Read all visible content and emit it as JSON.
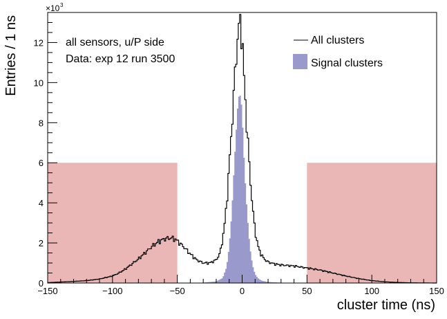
{
  "chart_data": {
    "type": "histogram",
    "xlabel": "cluster time (ns)",
    "ylabel": "Entries / 1 ns",
    "y_multiplier_label": "×10",
    "y_multiplier_exponent": "3",
    "xlim": [
      -150,
      150
    ],
    "ylim": [
      0,
      13.5
    ],
    "y_unit_note": "values in thousands of entries",
    "x_ticks": [
      -150,
      -100,
      -50,
      0,
      50,
      100,
      150
    ],
    "x_tick_labels": [
      "−150",
      "−100",
      "−50",
      "0",
      "50",
      "100",
      "150"
    ],
    "y_ticks": [
      0,
      2,
      4,
      6,
      8,
      10,
      12
    ],
    "y_tick_labels": [
      "0",
      "2",
      "4",
      "6",
      "8",
      "10",
      "12"
    ],
    "annotations": [
      "all sensors, u/P side",
      "Data: exp 12 run 3500"
    ],
    "legend": [
      {
        "label": "All clusters",
        "style": "line",
        "color": "#000000"
      },
      {
        "label": "Signal clusters",
        "style": "fill",
        "color": "#9999cc"
      }
    ],
    "shaded_regions": [
      {
        "x_from": -150,
        "x_to": -50,
        "y_to": 6,
        "color": "#e6a4a4"
      },
      {
        "x_from": 50,
        "x_to": 150,
        "y_to": 6,
        "color": "#e6a4a4"
      }
    ],
    "series": [
      {
        "name": "All clusters",
        "kind": "step-line",
        "color": "#000000",
        "points": [
          [
            -150,
            0.02
          ],
          [
            -140,
            0.05
          ],
          [
            -130,
            0.08
          ],
          [
            -120,
            0.12
          ],
          [
            -110,
            0.2
          ],
          [
            -100,
            0.35
          ],
          [
            -95,
            0.5
          ],
          [
            -90,
            0.7
          ],
          [
            -85,
            0.95
          ],
          [
            -80,
            1.2
          ],
          [
            -75,
            1.5
          ],
          [
            -70,
            1.8
          ],
          [
            -65,
            2.05
          ],
          [
            -60,
            2.2
          ],
          [
            -55,
            2.25
          ],
          [
            -52,
            2.2
          ],
          [
            -50,
            2.1
          ],
          [
            -45,
            1.8
          ],
          [
            -40,
            1.45
          ],
          [
            -35,
            1.15
          ],
          [
            -30,
            1.0
          ],
          [
            -25,
            1.0
          ],
          [
            -20,
            1.15
          ],
          [
            -17,
            1.5
          ],
          [
            -15,
            2.2
          ],
          [
            -13,
            3.2
          ],
          [
            -11,
            4.8
          ],
          [
            -9,
            6.8
          ],
          [
            -7,
            8.8
          ],
          [
            -5,
            11.0
          ],
          [
            -3,
            12.6
          ],
          [
            -2,
            12.95
          ],
          [
            -1,
            12.9
          ],
          [
            0,
            12.2
          ],
          [
            1,
            11.0
          ],
          [
            2,
            9.5
          ],
          [
            4,
            7.5
          ],
          [
            6,
            5.4
          ],
          [
            8,
            3.8
          ],
          [
            10,
            2.6
          ],
          [
            12,
            1.9
          ],
          [
            14,
            1.5
          ],
          [
            17,
            1.2
          ],
          [
            20,
            1.05
          ],
          [
            25,
            0.95
          ],
          [
            30,
            0.9
          ],
          [
            40,
            0.85
          ],
          [
            50,
            0.75
          ],
          [
            60,
            0.65
          ],
          [
            70,
            0.5
          ],
          [
            80,
            0.35
          ],
          [
            90,
            0.22
          ],
          [
            100,
            0.12
          ],
          [
            110,
            0.06
          ],
          [
            120,
            0.03
          ],
          [
            130,
            0.01
          ],
          [
            150,
            0.0
          ]
        ]
      },
      {
        "name": "Signal clusters",
        "kind": "filled-step",
        "color": "#9999cc",
        "points": [
          [
            -150,
            0.0
          ],
          [
            -50,
            0.0
          ],
          [
            -30,
            0.02
          ],
          [
            -20,
            0.08
          ],
          [
            -15,
            0.25
          ],
          [
            -12,
            0.8
          ],
          [
            -10,
            1.8
          ],
          [
            -8,
            3.5
          ],
          [
            -6,
            6.0
          ],
          [
            -4,
            8.2
          ],
          [
            -3,
            9.2
          ],
          [
            -2,
            9.4
          ],
          [
            -1,
            9.3
          ],
          [
            0,
            8.5
          ],
          [
            1,
            7.0
          ],
          [
            2,
            5.5
          ],
          [
            4,
            3.4
          ],
          [
            6,
            1.8
          ],
          [
            8,
            0.9
          ],
          [
            10,
            0.45
          ],
          [
            12,
            0.25
          ],
          [
            15,
            0.12
          ],
          [
            20,
            0.05
          ],
          [
            30,
            0.02
          ],
          [
            50,
            0.0
          ],
          [
            150,
            0.0
          ]
        ]
      }
    ]
  }
}
